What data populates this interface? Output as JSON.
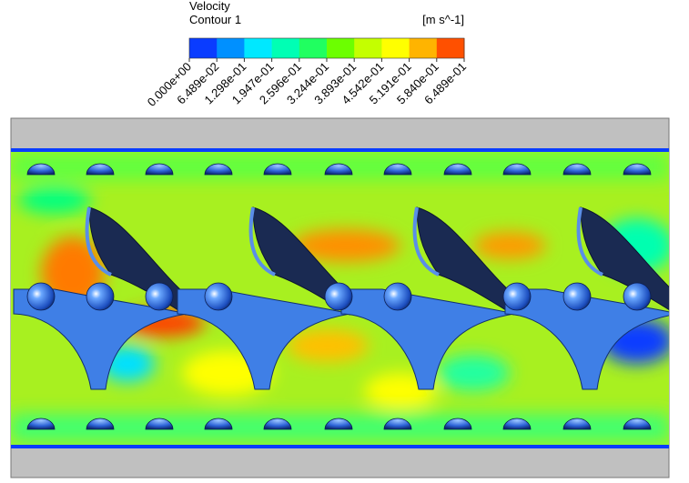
{
  "legend": {
    "title": "Velocity",
    "subtitle": "Contour 1",
    "unit": "[m s^-1]",
    "ticks": [
      {
        "value": 0,
        "label": "0.000e+00"
      },
      {
        "value": 0.06489,
        "label": "6.489e-02"
      },
      {
        "value": 0.1298,
        "label": "1.298e-01"
      },
      {
        "value": 0.1947,
        "label": "1.947e-01"
      },
      {
        "value": 0.2596,
        "label": "2.596e-01"
      },
      {
        "value": 0.3244,
        "label": "3.244e-01"
      },
      {
        "value": 0.3893,
        "label": "3.893e-01"
      },
      {
        "value": 0.4542,
        "label": "4.542e-01"
      },
      {
        "value": 0.5191,
        "label": "5.191e-01"
      },
      {
        "value": 0.584,
        "label": "5.840e-01"
      },
      {
        "value": 0.6489,
        "label": "6.489e-01"
      }
    ],
    "colors": [
      "#0a3cff",
      "#0090ff",
      "#00e8ff",
      "#00ffb4",
      "#20ff60",
      "#6cff00",
      "#c4ff00",
      "#ffff00",
      "#ffb400",
      "#ff5000"
    ]
  }
}
